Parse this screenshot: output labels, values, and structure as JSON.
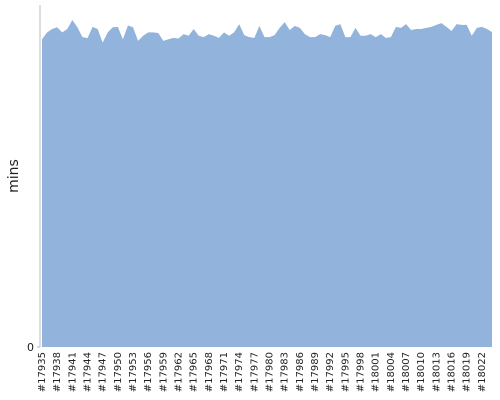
{
  "chart_data": {
    "type": "area",
    "ylabel": "mins",
    "color": "#92b4dc",
    "categories": [
      "#17935",
      null,
      null,
      "#17938",
      null,
      null,
      "#17941",
      null,
      null,
      "#17944",
      null,
      null,
      "#17947",
      null,
      null,
      "#17950",
      null,
      null,
      "#17953",
      null,
      null,
      "#17956",
      null,
      null,
      "#17959",
      null,
      null,
      "#17962",
      null,
      null,
      "#17965",
      null,
      null,
      "#17968",
      null,
      null,
      "#17971",
      null,
      null,
      "#17974",
      null,
      null,
      "#17977",
      null,
      null,
      "#17980",
      null,
      null,
      "#17983",
      null,
      null,
      "#17986",
      null,
      null,
      "#17989",
      null,
      null,
      "#17992",
      null,
      null,
      "#17995",
      null,
      null,
      "#17998",
      null,
      null,
      "#18001",
      null,
      null,
      "#18004",
      null,
      null,
      "#18007",
      null,
      null,
      "#18010",
      null,
      null,
      "#18013",
      null,
      null,
      "#18016",
      null,
      null,
      "#18019",
      null,
      null,
      "#18022",
      null,
      null
    ],
    "values": [
      90,
      92,
      93,
      93.5,
      92,
      93,
      95.6,
      93.5,
      90.6,
      90.3,
      93.6,
      93,
      89,
      92,
      93.5,
      93.6,
      90,
      94,
      93.5,
      89.5,
      91,
      92,
      92,
      91.8,
      89.5,
      90,
      90.4,
      90.2,
      91.5,
      91,
      93,
      91,
      90.6,
      91.5,
      91,
      90.4,
      92,
      91,
      92,
      94.4,
      91.2,
      90.6,
      90.4,
      93.9,
      90.6,
      90.6,
      91.2,
      93.3,
      95,
      92.7,
      93.9,
      93.3,
      91.5,
      90.6,
      90.6,
      91.5,
      91.2,
      90.6,
      93.9,
      94.4,
      90.6,
      90.6,
      93.3,
      91,
      91,
      91.5,
      90.6,
      91.5,
      90.4,
      90.6,
      93.6,
      93.3,
      94.4,
      92.7,
      93,
      93,
      93.3,
      93.6,
      94.2,
      94.7,
      93.6,
      92.4,
      94.4,
      94.2,
      94.2,
      91,
      93.3,
      93.6,
      93,
      92.1
    ],
    "ylim": [
      0,
      100
    ],
    "yticks": [
      0
    ]
  }
}
